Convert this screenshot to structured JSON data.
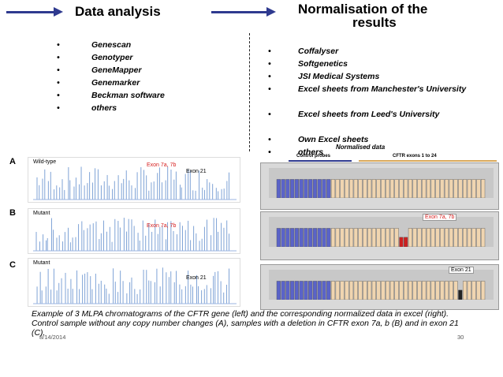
{
  "left": {
    "title": "Data analysis",
    "items": [
      "Genescan",
      "Genotyper",
      "GeneMapper",
      "Genemarker",
      "Beckman software",
      "others"
    ]
  },
  "right": {
    "title_line1": "Normalisation of the",
    "title_line2": "results",
    "items": [
      "Coffalyser",
      "Softgenetics",
      "JSI Medical Systems",
      "Excel sheets from Manchester's University",
      "Excel sheets from Leed's University",
      "Own Excel sheets",
      "others"
    ]
  },
  "bullet": "•",
  "chromatograms": {
    "labels": [
      "A",
      "B",
      "C"
    ],
    "panel_titles": [
      "Wild-type",
      "Mutant",
      "Mutant"
    ],
    "annot_exon7": "Exon 7a, 7b",
    "annot_exon21": "Exon 21"
  },
  "excel": {
    "title": "Normalised data",
    "control_label": "Control probes",
    "cftr_label": "CFTR exons 1 to 24",
    "annot_exon7": "Exon 7a, 7b",
    "annot_exon21": "Exon 21"
  },
  "caption": "Example of 3 MLPA chromatograms of the CFTR gene (left) and the corresponding normalized data in excel (right). Control sample without any copy number changes (A), samples with a deletion in CFTR exon 7a, b (B) and in exon 21 (C).",
  "footer": {
    "date": "8/14/2014",
    "page": "30"
  },
  "colors": {
    "arrow": "#2f3a8f",
    "annot": "#d62020",
    "blue_bar": "#5a63c8",
    "tan_bar": "#f0d5b0",
    "red_bar": "#cc2020"
  }
}
